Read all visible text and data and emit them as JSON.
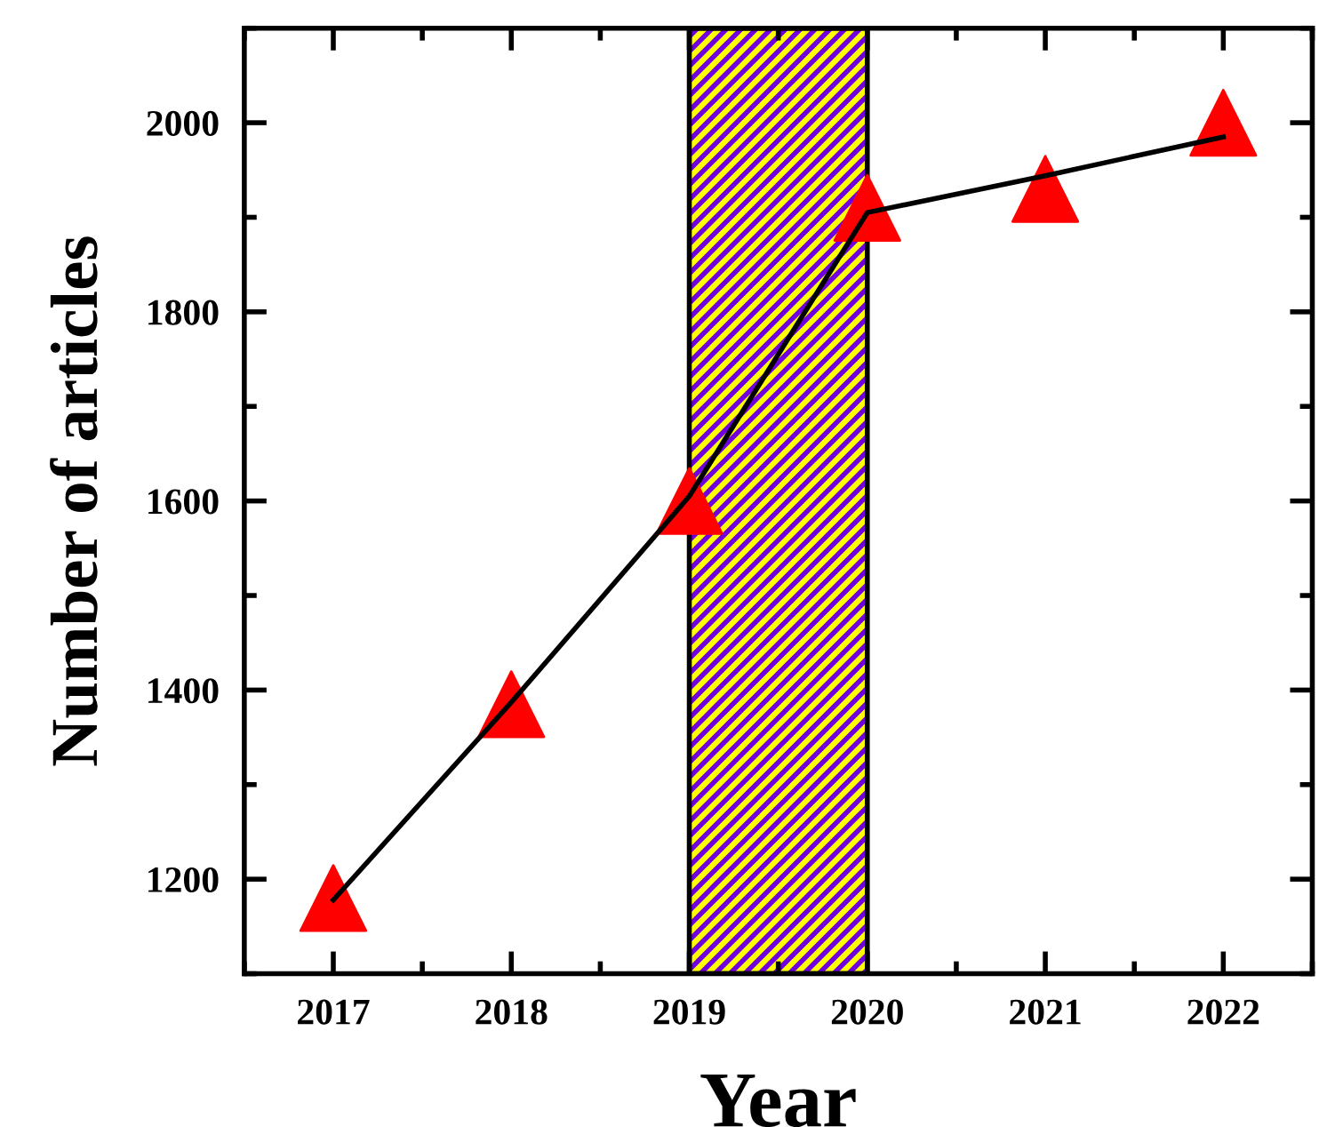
{
  "chart_data": {
    "type": "scatter",
    "xlabel": "Year",
    "ylabel": "Number of articles",
    "x": [
      2017,
      2018,
      2019,
      2020,
      2021,
      2022
    ],
    "series": [
      {
        "color": "#ff0000",
        "marker": "triangle",
        "values": [
          1180,
          1385,
          1600,
          1910,
          1930,
          2000
        ]
      },
      {
        "type": "line",
        "color": "#000000",
        "line_style": "solid",
        "marker": "none",
        "values": [
          1178,
          1387,
          1605,
          1905,
          1944,
          1985
        ]
      }
    ],
    "xlim": [
      2016.5,
      2022.5
    ],
    "xticks": [
      2017,
      2018,
      2019,
      2020,
      2021,
      2022
    ],
    "ylim": [
      1100,
      2100
    ],
    "yticks": [
      1200,
      1400,
      1600,
      1800,
      2000
    ],
    "bands": [
      {
        "axis": "x",
        "from": 2019,
        "to": 2020,
        "color": "#ffff00"
      }
    ],
    "grid": false,
    "legend": false
  }
}
